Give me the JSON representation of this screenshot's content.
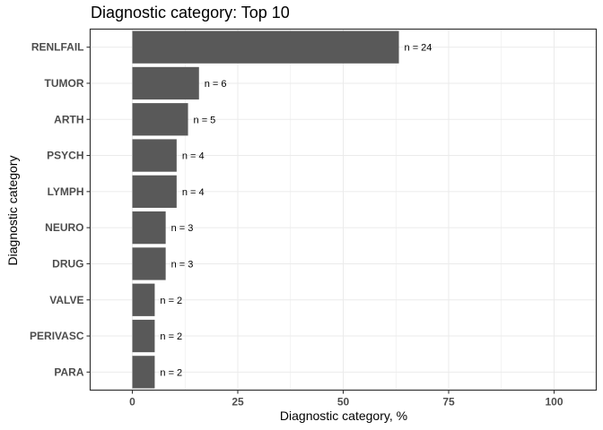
{
  "chart_data": {
    "type": "bar",
    "orientation": "horizontal",
    "title": "Diagnostic category: Top 10",
    "xlabel": "Diagnostic category, %",
    "ylabel": "Diagnostic category",
    "categories": [
      "RENLFAIL",
      "TUMOR",
      "ARTH",
      "PSYCH",
      "LYMPH",
      "NEURO",
      "DRUG",
      "VALVE",
      "PERIVASC",
      "PARA"
    ],
    "values": [
      63.2,
      15.8,
      13.2,
      10.5,
      10.5,
      7.9,
      7.9,
      5.3,
      5.3,
      5.3
    ],
    "data_labels": [
      "n = 24",
      "n = 6",
      "n = 5",
      "n = 4",
      "n = 4",
      "n = 3",
      "n = 3",
      "n = 2",
      "n = 2",
      "n = 2"
    ],
    "xlim": [
      -10,
      110
    ],
    "xticks": [
      0,
      25,
      50,
      75,
      100
    ],
    "bar_color": "#595959",
    "grid": true
  }
}
